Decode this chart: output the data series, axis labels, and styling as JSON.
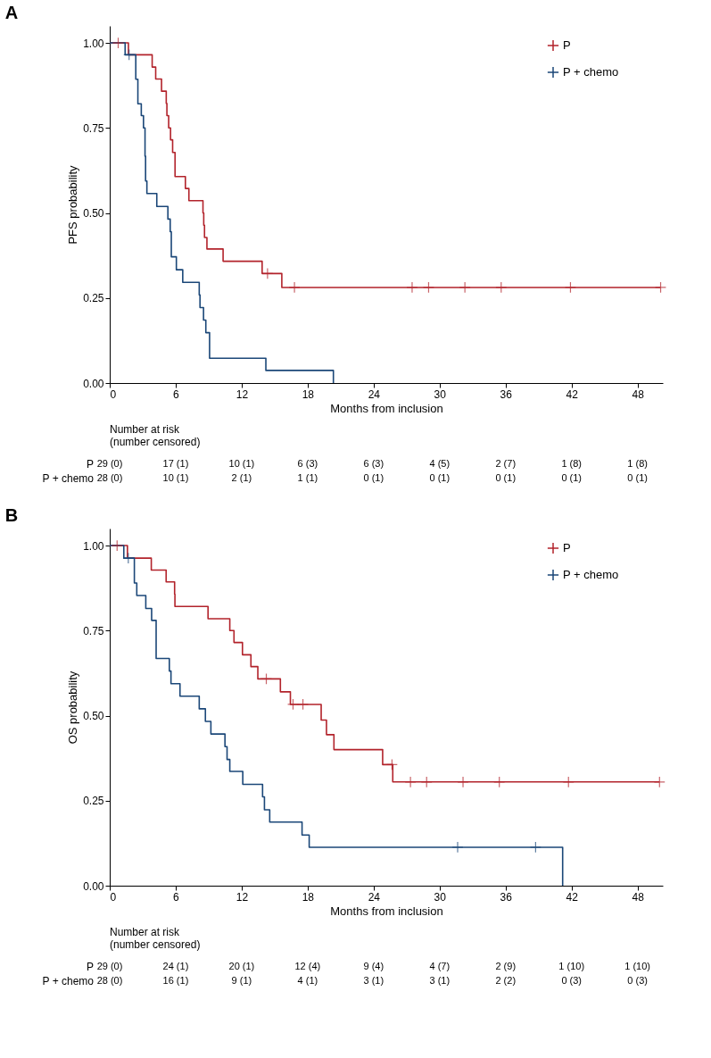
{
  "chart_data": [
    {
      "type": "step",
      "title": "A",
      "xlabel": "Months from inclusion",
      "ylabel": "PFS probability",
      "xlim": [
        0,
        50.3
      ],
      "xticks": [
        0,
        6,
        12,
        18,
        24,
        30,
        36,
        42,
        48
      ],
      "ylim": [
        0,
        1.05
      ],
      "yticks": [
        {
          "value": 0,
          "label": "0.00"
        },
        {
          "value": 0.25,
          "label": "0.25"
        },
        {
          "value": 0.5,
          "label": "0.50"
        },
        {
          "value": 0.75,
          "label": "0.75"
        },
        {
          "value": 1,
          "label": "1.00"
        }
      ],
      "legend": "top right",
      "series": [
        {
          "name": "P",
          "color": "#b2232b",
          "x": [
            0,
            1.7,
            3.86,
            4.18,
            4.71,
            5.14,
            5.2,
            5.36,
            5.53,
            5.72,
            5.94,
            6.88,
            7.2,
            8.48,
            8.55,
            8.62,
            8.84,
            10.31,
            13.86,
            15.65,
            50.1
          ],
          "values": [
            1,
            0.965,
            0.929,
            0.894,
            0.858,
            0.822,
            0.786,
            0.75,
            0.715,
            0.678,
            0.607,
            0.572,
            0.536,
            0.5,
            0.464,
            0.428,
            0.394,
            0.358,
            0.322,
            0.281,
            0.281
          ]
        },
        {
          "name": "P + chemo",
          "color": "#1b4778",
          "x": [
            0,
            1.4,
            2.37,
            2.56,
            2.87,
            3.07,
            3.21,
            3.26,
            3.38,
            4.28,
            5.29,
            5.5,
            5.6,
            6.06,
            6.64,
            8.14,
            8.21,
            8.53,
            8.74,
            9.08,
            14.2,
            20.34
          ],
          "values": [
            1,
            0.965,
            0.893,
            0.821,
            0.786,
            0.75,
            0.667,
            0.594,
            0.557,
            0.519,
            0.482,
            0.445,
            0.371,
            0.333,
            0.296,
            0.259,
            0.222,
            0.185,
            0.148,
            0.073,
            0.037,
            0
          ]
        },
        {
          "color": "#b2232b",
          "type": "scatter",
          "marker": "cross",
          "x": [
            0.77,
            14.35,
            16.8,
            27.5,
            29.0,
            32.3,
            35.6,
            41.9,
            50.1
          ],
          "values": [
            1,
            0.322,
            0.281,
            0.281,
            0.281,
            0.281,
            0.281,
            0.281,
            0.281
          ]
        },
        {
          "color": "#1b4778",
          "type": "scatter",
          "marker": "cross",
          "x": [
            1.76
          ],
          "values": [
            0.965
          ]
        }
      ],
      "annotations": [
        "Number at risk\n(number censored)",
        "29 (0)",
        "17 (1)",
        "10 (1)",
        "6 (3)",
        "6 (3)",
        "4 (5)",
        "2 (7)",
        "1 (8)",
        "1 (8)",
        "28 (0)",
        "10 (1)",
        "2 (1)",
        "1 (1)",
        "0 (1)",
        "0 (1)",
        "0 (1)",
        "0 (1)",
        "0 (1)"
      ]
    },
    {
      "type": "step",
      "title": "B",
      "xlabel": "Months from inclusion",
      "ylabel": "OS probability",
      "xlim": [
        0,
        50.3
      ],
      "xticks": [
        0,
        6,
        12,
        18,
        24,
        30,
        36,
        42,
        48
      ],
      "ylim": [
        0,
        1.05
      ],
      "yticks": [
        {
          "value": 0,
          "label": "0.00"
        },
        {
          "value": 0.25,
          "label": "0.25"
        },
        {
          "value": 0.5,
          "label": "0.50"
        },
        {
          "value": 0.75,
          "label": "0.75"
        },
        {
          "value": 1,
          "label": "1.00"
        }
      ],
      "legend": "top right",
      "series": [
        {
          "name": "P",
          "color": "#b2232b",
          "x": [
            0,
            1.61,
            3.78,
            5.13,
            5.9,
            5.93,
            8.94,
            10.92,
            11.3,
            12.07,
            12.84,
            13.47,
            15.52,
            16.43,
            19.23,
            19.71,
            20.39,
            24.82,
            25.74,
            50.0
          ],
          "values": [
            1,
            0.963,
            0.928,
            0.893,
            0.857,
            0.821,
            0.785,
            0.75,
            0.715,
            0.679,
            0.644,
            0.608,
            0.57,
            0.533,
            0.487,
            0.444,
            0.4,
            0.356,
            0.305,
            0.305
          ]
        },
        {
          "name": "P + chemo",
          "color": "#1b4778",
          "x": [
            0,
            1.28,
            2.24,
            2.46,
            3.28,
            3.81,
            4.22,
            5.42,
            5.57,
            6.39,
            8.14,
            8.7,
            9.2,
            10.48,
            10.67,
            10.92,
            12.1,
            13.9,
            14.07,
            14.55,
            17.49,
            18.14,
            41.19
          ],
          "values": [
            1,
            0.963,
            0.89,
            0.853,
            0.815,
            0.78,
            0.668,
            0.631,
            0.594,
            0.557,
            0.52,
            0.483,
            0.446,
            0.409,
            0.371,
            0.336,
            0.298,
            0.261,
            0.223,
            0.187,
            0.149,
            0.113,
            0
          ]
        },
        {
          "color": "#b2232b",
          "type": "scatter",
          "marker": "cross",
          "x": [
            0.67,
            14.24,
            16.67,
            17.57,
            25.67,
            27.35,
            28.82,
            32.13,
            35.43,
            41.72,
            50.0
          ],
          "values": [
            1,
            0.608,
            0.533,
            0.533,
            0.356,
            0.305,
            0.305,
            0.305,
            0.305,
            0.305,
            0.305
          ]
        },
        {
          "color": "#1b4778",
          "type": "scatter",
          "marker": "cross",
          "x": [
            1.69,
            31.64,
            38.73
          ],
          "values": [
            0.963,
            0.113,
            0.113
          ]
        }
      ],
      "annotations": [
        "Number at risk\n(number censored)",
        "29 (0)",
        "24 (1)",
        "20 (1)",
        "12 (4)",
        "9 (4)",
        "4 (7)",
        "2 (9)",
        "1 (10)",
        "1 (10)",
        "28 (0)",
        "16 (1)",
        "9 (1)",
        "4 (1)",
        "3 (1)",
        "3 (1)",
        "2 (2)",
        "0 (3)",
        "0 (3)"
      ]
    }
  ]
}
